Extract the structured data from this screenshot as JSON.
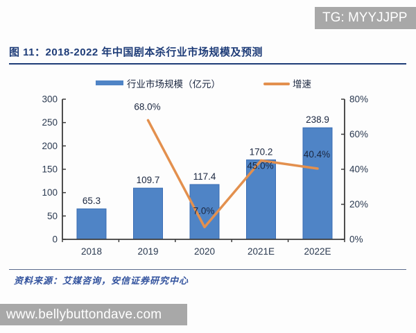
{
  "page": {
    "watermark_top": "TG: MYYJJPP",
    "watermark_bottom": "www.bellybuttondave.com"
  },
  "figure": {
    "title": "图 11：2018-2022 年中国剧本杀行业市场规模及预测",
    "source": "资料来源：艾媒咨询，安信证券研究中心"
  },
  "colors": {
    "bar_fill": "#4f84c6",
    "bar_stroke": "#3a6db4",
    "line": "#e3904e",
    "navy": "#1e3c78",
    "axis": "#3b3b3b",
    "axis_label": "#2a3950",
    "data_label": "#1b2740",
    "watermark_bg": "#a8a8a8"
  },
  "chart_data": {
    "type": "bar",
    "title": "2018-2022 年中国剧本杀行业市场规模及预测",
    "categories": [
      "2018",
      "2019",
      "2020",
      "2021E",
      "2022E"
    ],
    "series": [
      {
        "name": "行业市场规模（亿元）",
        "type": "bar",
        "axis": "left",
        "values": [
          65.3,
          109.7,
          117.4,
          170.2,
          238.9
        ],
        "labels": [
          "65.3",
          "109.7",
          "117.4",
          "170.2",
          "238.9"
        ]
      },
      {
        "name": "增速",
        "type": "line",
        "axis": "right",
        "values": [
          null,
          68.0,
          7.0,
          45.0,
          40.4
        ],
        "labels": [
          "",
          "68.0%",
          "7.0%",
          "45.0%",
          "40.4%"
        ]
      }
    ],
    "left_axis": {
      "min": 0,
      "max": 300,
      "step": 50,
      "ticks": [
        "0",
        "50",
        "100",
        "150",
        "200",
        "250",
        "300"
      ]
    },
    "right_axis": {
      "min": 0,
      "max": 80,
      "step": 20,
      "ticks": [
        "0%",
        "20%",
        "40%",
        "60%",
        "80%"
      ]
    },
    "legend_position": "top",
    "grid": false
  }
}
